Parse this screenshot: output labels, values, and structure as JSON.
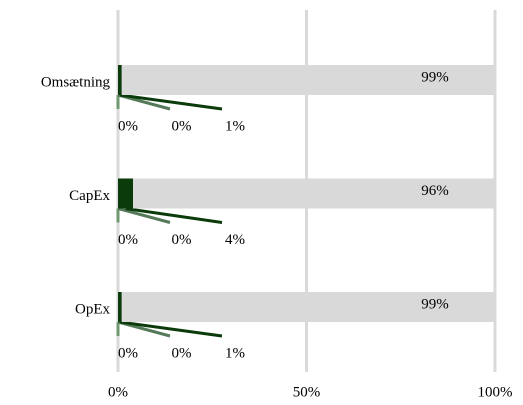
{
  "chart_data": {
    "type": "bar",
    "orientation": "horizontal",
    "stacked": true,
    "categories": [
      "Omsætning",
      "CapEx",
      "OpEx"
    ],
    "series": [
      {
        "color": "#6f9a6f",
        "values": [
          0,
          0,
          0
        ],
        "value_labels": [
          "0%",
          "0%",
          "0%"
        ]
      },
      {
        "color": "#557a5a",
        "values": [
          0,
          0,
          0
        ],
        "value_labels": [
          "0%",
          "0%",
          "0%"
        ]
      },
      {
        "color": "#0b3a0b",
        "values": [
          1,
          4,
          1
        ],
        "value_labels": [
          "1%",
          "4%",
          "1%"
        ]
      },
      {
        "color": "#d9d9d9",
        "values": [
          99,
          96,
          99
        ],
        "value_labels": [
          "99%",
          "96%",
          "99%"
        ]
      }
    ],
    "xlim": [
      0,
      100
    ],
    "xticks": [
      {
        "value": 0,
        "label": "0%"
      },
      {
        "value": 50,
        "label": "50%"
      },
      {
        "value": 100,
        "label": "100%"
      }
    ],
    "grid": true
  }
}
